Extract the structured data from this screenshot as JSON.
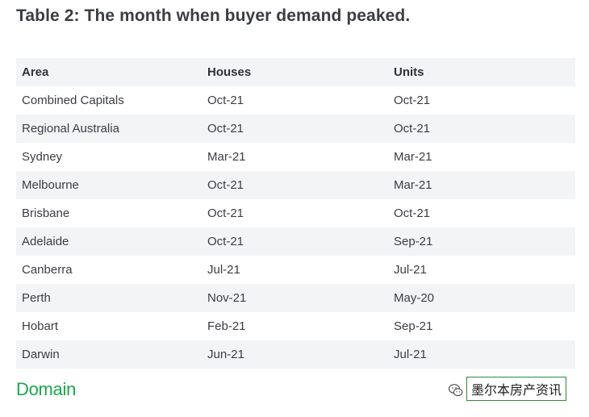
{
  "title": "Table 2: The month when buyer demand peaked.",
  "table": {
    "headers": [
      "Area",
      "Houses",
      "Units"
    ],
    "rows": [
      [
        "Combined Capitals",
        "Oct-21",
        "Oct-21"
      ],
      [
        "Regional Australia",
        "Oct-21",
        "Oct-21"
      ],
      [
        "Sydney",
        "Mar-21",
        "Mar-21"
      ],
      [
        "Melbourne",
        "Oct-21",
        "Mar-21"
      ],
      [
        "Brisbane",
        "Oct-21",
        "Oct-21"
      ],
      [
        "Adelaide",
        "Oct-21",
        "Sep-21"
      ],
      [
        "Canberra",
        "Jul-21",
        "Jul-21"
      ],
      [
        "Perth",
        "Nov-21",
        "May-20"
      ],
      [
        "Hobart",
        "Feb-21",
        "Sep-21"
      ],
      [
        "Darwin",
        "Jun-21",
        "Jul-21"
      ]
    ]
  },
  "footer": {
    "logo": "Domain",
    "logo_color": "#1aa64a",
    "watermark_icon": "wechat-icon",
    "watermark": "墨尔本房产资讯"
  }
}
